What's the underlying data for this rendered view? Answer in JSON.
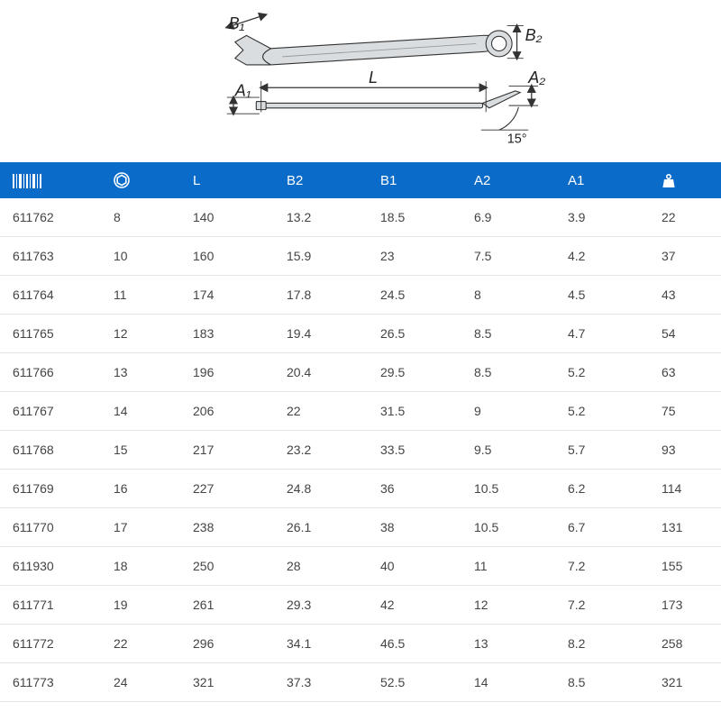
{
  "diagram": {
    "labels": {
      "B1": "B₁",
      "B2": "B₂",
      "A1": "A₁",
      "A2": "A₂",
      "L": "L",
      "angle": "15°"
    },
    "stroke": "#333333",
    "fill_wrench": "#d9dde0",
    "label_fontsize": 20,
    "angle_fontsize": 16
  },
  "table": {
    "header_bg": "#0a6cc8",
    "header_fg": "#ffffff",
    "row_border": "#e4e4e4",
    "header_fontsize": 15,
    "cell_fontsize": 14,
    "columns": [
      {
        "key": "code",
        "type": "icon",
        "icon": "barcode"
      },
      {
        "key": "size",
        "type": "icon",
        "icon": "hex"
      },
      {
        "key": "L",
        "type": "label",
        "label": "L"
      },
      {
        "key": "B2",
        "type": "label",
        "label": "B2"
      },
      {
        "key": "B1",
        "type": "label",
        "label": "B1"
      },
      {
        "key": "A2",
        "type": "label",
        "label": "A2"
      },
      {
        "key": "A1",
        "type": "label",
        "label": "A1"
      },
      {
        "key": "weight",
        "type": "icon",
        "icon": "weight"
      }
    ],
    "rows": [
      [
        "611762",
        "8",
        "140",
        "13.2",
        "18.5",
        "6.9",
        "3.9",
        "22"
      ],
      [
        "611763",
        "10",
        "160",
        "15.9",
        "23",
        "7.5",
        "4.2",
        "37"
      ],
      [
        "611764",
        "11",
        "174",
        "17.8",
        "24.5",
        "8",
        "4.5",
        "43"
      ],
      [
        "611765",
        "12",
        "183",
        "19.4",
        "26.5",
        "8.5",
        "4.7",
        "54"
      ],
      [
        "611766",
        "13",
        "196",
        "20.4",
        "29.5",
        "8.5",
        "5.2",
        "63"
      ],
      [
        "611767",
        "14",
        "206",
        "22",
        "31.5",
        "9",
        "5.2",
        "75"
      ],
      [
        "611768",
        "15",
        "217",
        "23.2",
        "33.5",
        "9.5",
        "5.7",
        "93"
      ],
      [
        "611769",
        "16",
        "227",
        "24.8",
        "36",
        "10.5",
        "6.2",
        "114"
      ],
      [
        "611770",
        "17",
        "238",
        "26.1",
        "38",
        "10.5",
        "6.7",
        "131"
      ],
      [
        "611930",
        "18",
        "250",
        "28",
        "40",
        "11",
        "7.2",
        "155"
      ],
      [
        "611771",
        "19",
        "261",
        "29.3",
        "42",
        "12",
        "7.2",
        "173"
      ],
      [
        "611772",
        "22",
        "296",
        "34.1",
        "46.5",
        "13",
        "8.2",
        "258"
      ],
      [
        "611773",
        "24",
        "321",
        "37.3",
        "52.5",
        "14",
        "8.5",
        "321"
      ]
    ]
  }
}
